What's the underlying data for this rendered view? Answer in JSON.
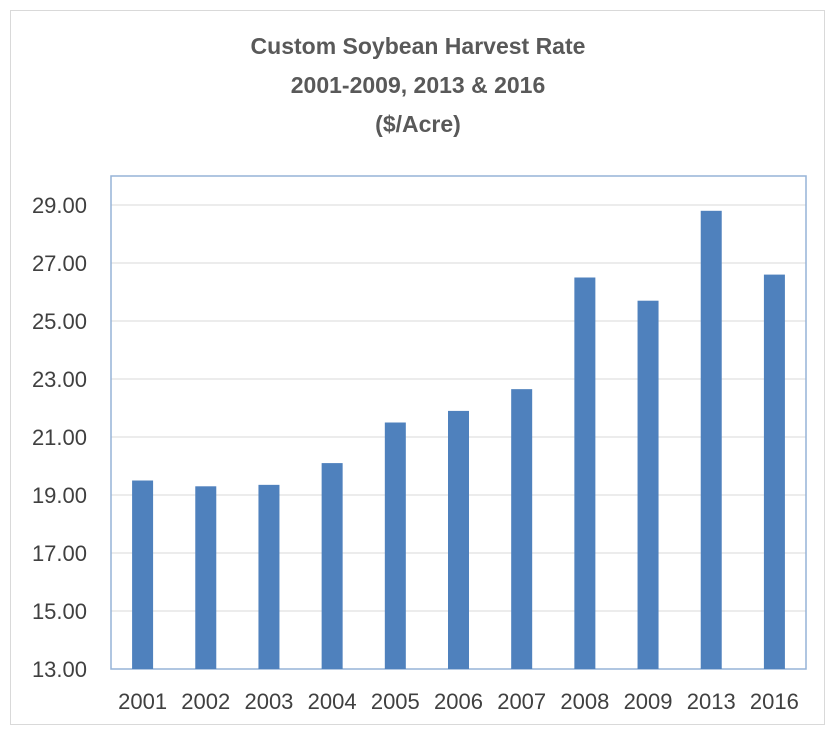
{
  "chart_data": {
    "type": "bar",
    "title_lines": [
      "Custom Soybean Harvest Rate",
      "2001-2009, 2013 & 2016",
      "($/Acre)"
    ],
    "xlabel": "",
    "ylabel": "",
    "categories": [
      "2001",
      "2002",
      "2003",
      "2004",
      "2005",
      "2006",
      "2007",
      "2008",
      "2009",
      "2013",
      "2016"
    ],
    "values": [
      19.5,
      19.3,
      19.35,
      20.1,
      21.5,
      21.9,
      22.65,
      26.5,
      25.7,
      28.8,
      26.6
    ],
    "ylim": [
      13,
      30
    ],
    "yticks": [
      "13.00",
      "15.00",
      "17.00",
      "19.00",
      "21.00",
      "23.00",
      "25.00",
      "27.00",
      "29.00"
    ],
    "ytick_values": [
      13,
      15,
      17,
      19,
      21,
      23,
      25,
      27,
      29
    ],
    "grid": true,
    "legend": "none",
    "colors": {
      "bar": "#4f81bd",
      "grid": "#d9d9d9",
      "plot_border": "#95b3d7",
      "text": "#404040"
    }
  }
}
